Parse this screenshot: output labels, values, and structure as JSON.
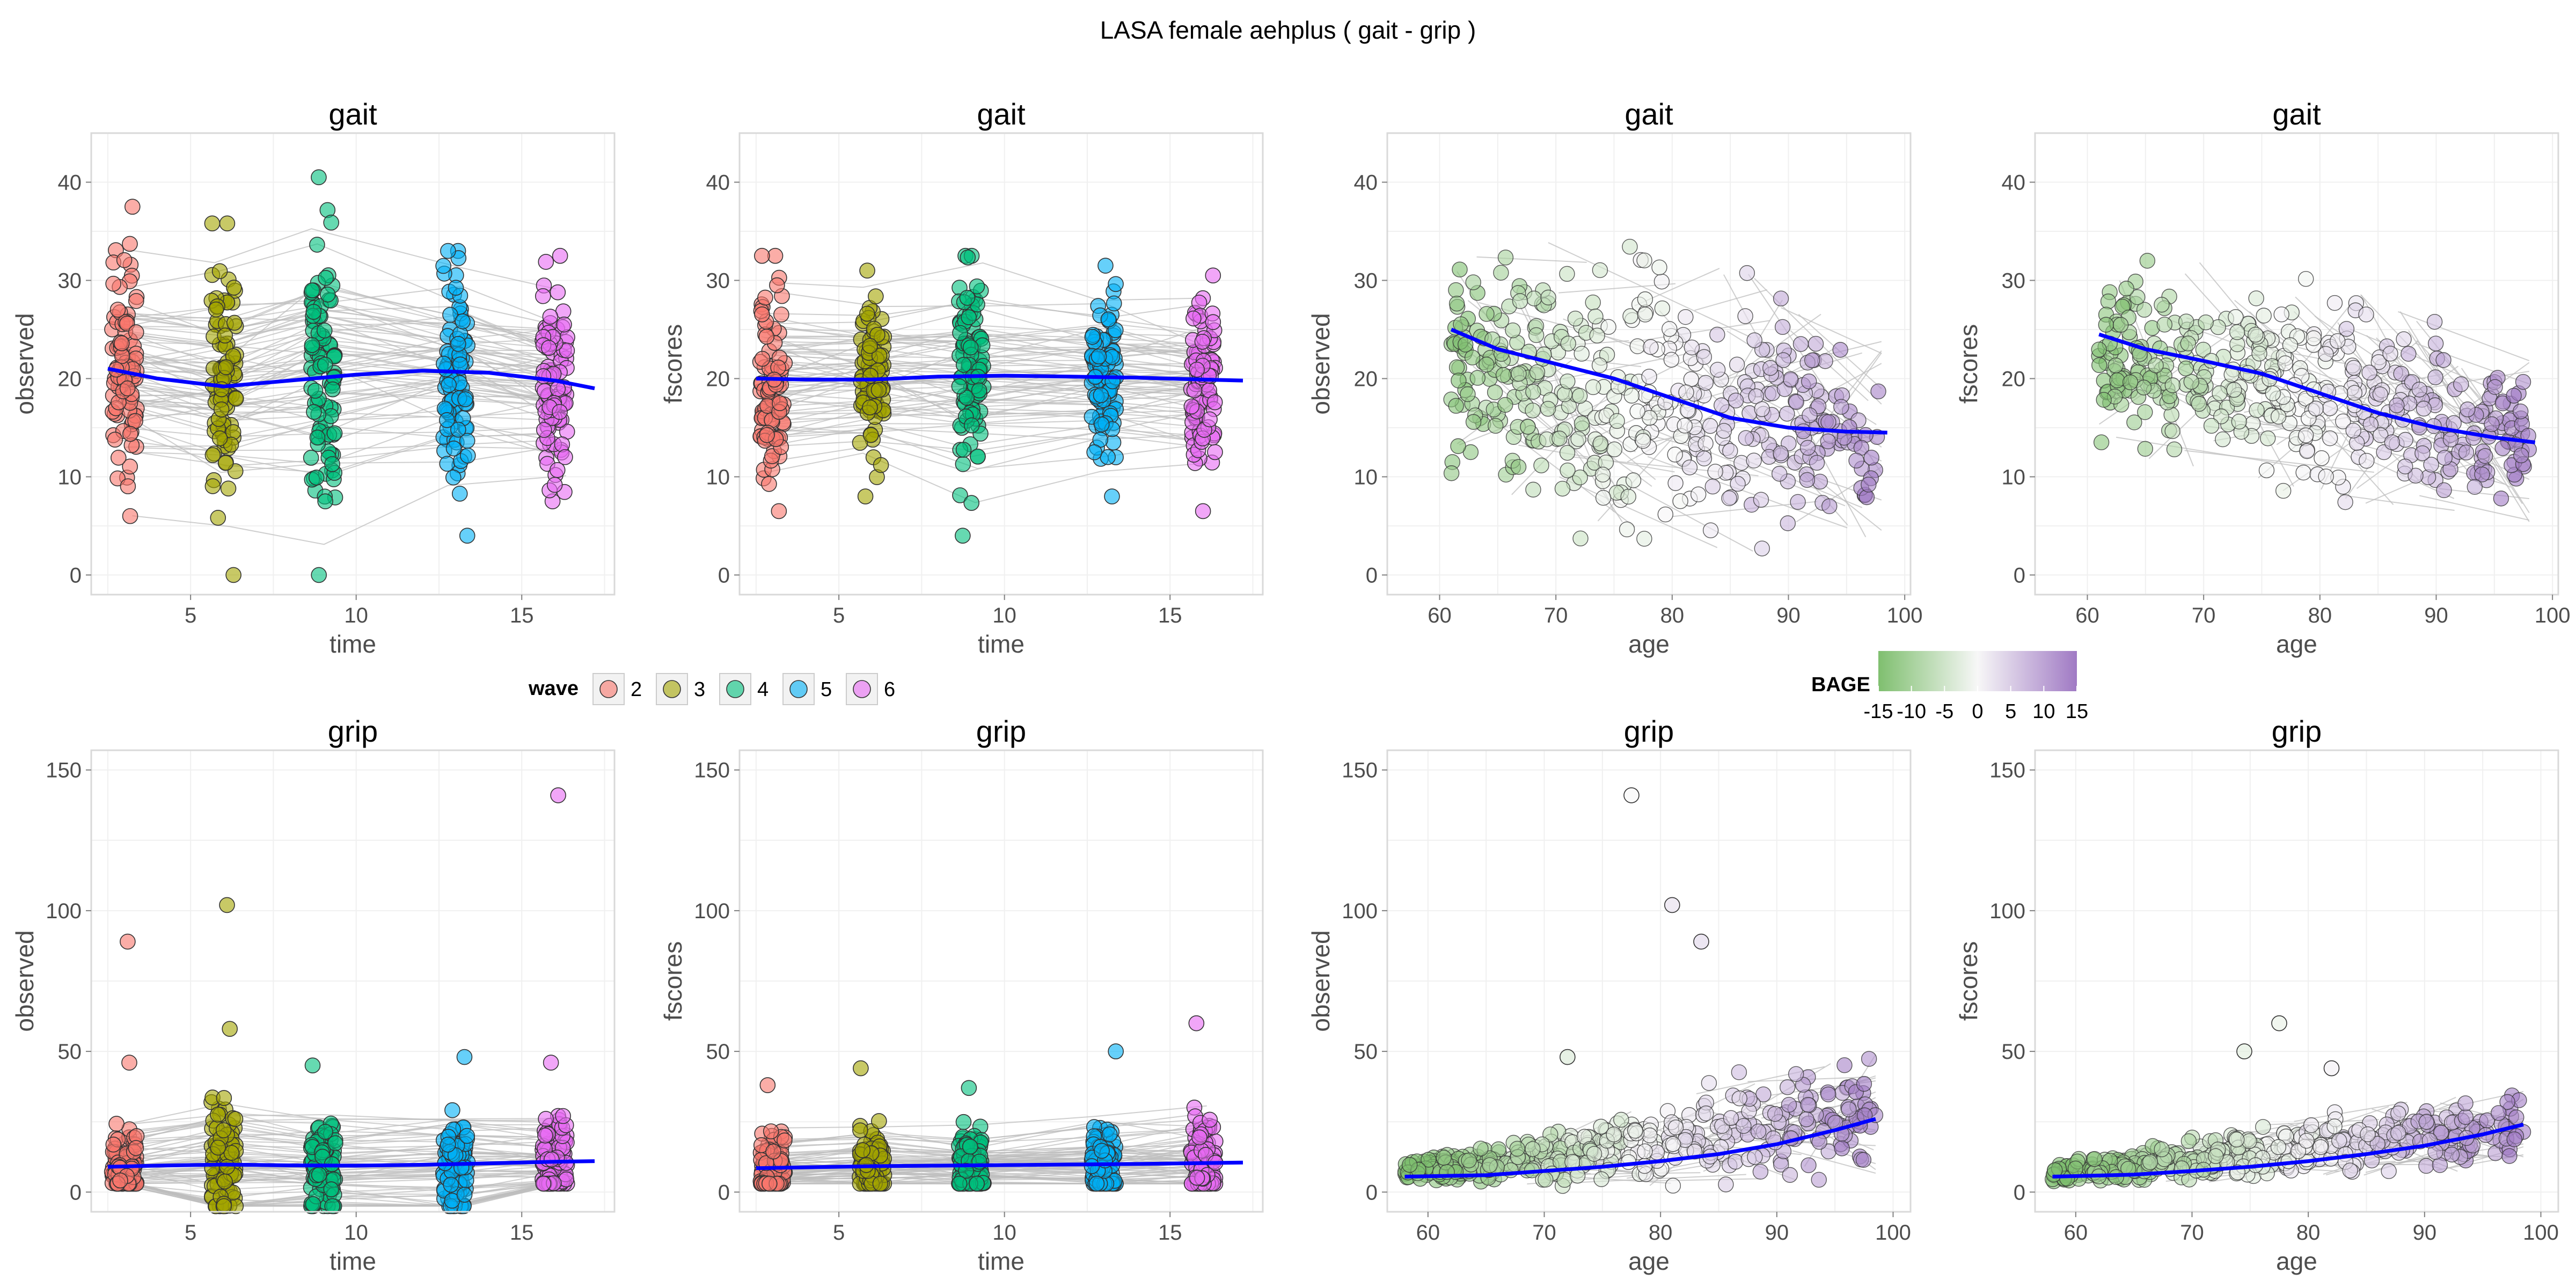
{
  "figure": {
    "title": "LASA  female  aehplus ( gait - grip )",
    "background": "#ffffff",
    "panel_background": "#ffffff",
    "grid_color": "#f0f0f0",
    "panel_border": "#d9d9d9",
    "smooth_color": "#0000ff",
    "trajectory_color": "#bdbdbd"
  },
  "legends": {
    "wave": {
      "title": "wave",
      "entries": [
        {
          "label": "2",
          "color": "#f8766d"
        },
        {
          "label": "3",
          "color": "#a3a500"
        },
        {
          "label": "4",
          "color": "#00bf7d"
        },
        {
          "label": "5",
          "color": "#00b0f6"
        },
        {
          "label": "6",
          "color": "#e76bf3"
        }
      ]
    },
    "bage": {
      "title": "BAGE",
      "low_color": "#7fbf6f",
      "mid_color": "#f7f7f7",
      "high_color": "#a07ac4",
      "labels": [
        "-15",
        "-10",
        "-5",
        "0",
        "5",
        "10",
        "15"
      ],
      "range": [
        -15,
        15
      ]
    }
  },
  "chart_data": [
    {
      "type": "scatter",
      "title": "gait",
      "xlabel": "time",
      "ylabel": "observed",
      "xlim": [
        2,
        17.8
      ],
      "ylim": [
        -2,
        45
      ],
      "xticks": [
        5,
        10,
        15
      ],
      "yticks": [
        0,
        10,
        20,
        30,
        40
      ],
      "color_by": "wave",
      "series": [
        {
          "name": "2",
          "x": 3,
          "range": [
            6,
            37.5
          ],
          "center": 20
        },
        {
          "name": "3",
          "x": 6,
          "range": [
            0,
            35.8
          ],
          "center": 19
        },
        {
          "name": "4",
          "x": 9,
          "range": [
            0,
            40.5
          ],
          "center": 20.5
        },
        {
          "name": "5",
          "x": 13,
          "range": [
            4,
            33
          ],
          "center": 20.5
        },
        {
          "name": "6",
          "x": 16,
          "range": [
            7.5,
            32.5
          ],
          "center": 19.5
        }
      ],
      "smooth": {
        "x": [
          2.5,
          4,
          6,
          8,
          10,
          12,
          14,
          16,
          17.2
        ],
        "y": [
          21,
          20,
          19.2,
          19.8,
          20.4,
          20.8,
          20.6,
          19.8,
          19
        ]
      }
    },
    {
      "type": "scatter",
      "title": "gait",
      "xlabel": "time",
      "ylabel": "fscores",
      "xlim": [
        2,
        17.8
      ],
      "ylim": [
        -2,
        45
      ],
      "xticks": [
        5,
        10,
        15
      ],
      "yticks": [
        0,
        10,
        20,
        30,
        40
      ],
      "color_by": "wave",
      "series": [
        {
          "name": "2",
          "x": 3,
          "range": [
            6.5,
            32.5
          ],
          "center": 20
        },
        {
          "name": "3",
          "x": 6,
          "range": [
            8,
            31
          ],
          "center": 20
        },
        {
          "name": "4",
          "x": 9,
          "range": [
            4,
            32.5
          ],
          "center": 20
        },
        {
          "name": "5",
          "x": 13,
          "range": [
            8,
            31.5
          ],
          "center": 20
        },
        {
          "name": "6",
          "x": 16,
          "range": [
            6.5,
            30.5
          ],
          "center": 19.5
        }
      ],
      "smooth": {
        "x": [
          2.5,
          4,
          6,
          8,
          10,
          12,
          14,
          16,
          17.2
        ],
        "y": [
          20,
          19.9,
          19.9,
          20.2,
          20.3,
          20.2,
          20.1,
          19.9,
          19.8
        ]
      }
    },
    {
      "type": "scatter",
      "title": "gait",
      "xlabel": "age",
      "ylabel": "observed",
      "xlim": [
        55.5,
        100.5
      ],
      "ylim": [
        -2,
        45
      ],
      "xticks": [
        60,
        70,
        80,
        90,
        100
      ],
      "yticks": [
        0,
        10,
        20,
        30,
        40
      ],
      "color_by": "BAGE",
      "cloud": {
        "x_range": [
          61,
          98
        ],
        "upper": [
          33,
          35,
          33,
          30,
          25
        ],
        "lower": [
          8,
          4,
          2,
          1,
          4
        ]
      },
      "smooth": {
        "x": [
          61,
          65,
          70,
          75,
          80,
          85,
          90,
          95,
          98.5
        ],
        "y": [
          25,
          23,
          21.5,
          20,
          18,
          16,
          15,
          14.6,
          14.5
        ]
      }
    },
    {
      "type": "scatter",
      "title": "gait",
      "xlabel": "age",
      "ylabel": "fscores",
      "xlim": [
        55.5,
        100.5
      ],
      "ylim": [
        -2,
        45
      ],
      "xticks": [
        60,
        70,
        80,
        90,
        100
      ],
      "yticks": [
        0,
        10,
        20,
        30,
        40
      ],
      "color_by": "BAGE",
      "cloud": {
        "x_range": [
          61,
          98
        ],
        "upper": [
          32,
          32,
          30,
          27,
          22
        ],
        "lower": [
          13,
          10,
          8,
          6,
          5
        ]
      },
      "smooth": {
        "x": [
          61,
          65,
          70,
          75,
          80,
          85,
          90,
          95,
          98.5
        ],
        "y": [
          24.5,
          23,
          21.8,
          20.5,
          18.5,
          16.5,
          15,
          14,
          13.5
        ]
      }
    },
    {
      "type": "scatter",
      "title": "grip",
      "xlabel": "time",
      "ylabel": "observed",
      "xlim": [
        2,
        17.8
      ],
      "ylim": [
        -7,
        157
      ],
      "xticks": [
        5,
        10,
        15
      ],
      "yticks": [
        0,
        50,
        100,
        150
      ],
      "color_by": "wave",
      "series": [
        {
          "name": "2",
          "x": 3,
          "range": [
            3,
            46
          ],
          "center": 9
        },
        {
          "name": "3",
          "x": 6,
          "range": [
            -5,
            58
          ],
          "center": 10
        },
        {
          "name": "4",
          "x": 9,
          "range": [
            -5,
            45
          ],
          "center": 9
        },
        {
          "name": "5",
          "x": 13,
          "range": [
            -5,
            48
          ],
          "center": 10
        },
        {
          "name": "6",
          "x": 16,
          "range": [
            3,
            46
          ],
          "center": 11
        }
      ],
      "outliers": [
        {
          "x": 3.1,
          "y": 89,
          "wave": "2"
        },
        {
          "x": 6.1,
          "y": 102,
          "wave": "3"
        },
        {
          "x": 16.1,
          "y": 141,
          "wave": "6"
        }
      ],
      "smooth": {
        "x": [
          2.5,
          4,
          6,
          8,
          10,
          12,
          14,
          16,
          17.2
        ],
        "y": [
          9,
          9.4,
          9.8,
          9.5,
          9.4,
          9.7,
          10.2,
          10.8,
          11
        ]
      }
    },
    {
      "type": "scatter",
      "title": "grip",
      "xlabel": "time",
      "ylabel": "fscores",
      "xlim": [
        2,
        17.8
      ],
      "ylim": [
        -7,
        157
      ],
      "xticks": [
        5,
        10,
        15
      ],
      "yticks": [
        0,
        50,
        100,
        150
      ],
      "color_by": "wave",
      "series": [
        {
          "name": "2",
          "x": 3,
          "range": [
            3,
            38
          ],
          "center": 8
        },
        {
          "name": "3",
          "x": 6,
          "range": [
            3,
            44
          ],
          "center": 9
        },
        {
          "name": "4",
          "x": 9,
          "range": [
            3,
            37
          ],
          "center": 9
        },
        {
          "name": "5",
          "x": 13,
          "range": [
            3,
            50
          ],
          "center": 10
        },
        {
          "name": "6",
          "x": 16,
          "range": [
            3,
            60
          ],
          "center": 10
        }
      ],
      "smooth": {
        "x": [
          2.5,
          4,
          6,
          8,
          10,
          12,
          14,
          16,
          17.2
        ],
        "y": [
          8.5,
          8.8,
          9.2,
          9.4,
          9.6,
          9.8,
          10,
          10.3,
          10.5
        ]
      }
    },
    {
      "type": "scatter",
      "title": "grip",
      "xlabel": "age",
      "ylabel": "observed",
      "xlim": [
        56.5,
        101.5
      ],
      "ylim": [
        -7,
        157
      ],
      "xticks": [
        60,
        70,
        80,
        90,
        100
      ],
      "yticks": [
        0,
        50,
        100,
        150
      ],
      "color_by": "BAGE",
      "cloud": {
        "x_range": [
          58,
          98.5
        ],
        "upper": [
          12,
          20,
          30,
          45,
          50
        ],
        "lower": [
          3,
          2,
          2,
          3,
          5
        ]
      },
      "outliers": [
        {
          "x": 77.5,
          "y": 141,
          "bage": 0
        },
        {
          "x": 81,
          "y": 102,
          "bage": 3
        },
        {
          "x": 83.5,
          "y": 89,
          "bage": 4
        },
        {
          "x": 72,
          "y": 48,
          "bage": -4
        }
      ],
      "smooth": {
        "x": [
          58,
          65,
          70,
          75,
          80,
          85,
          90,
          95,
          98.5
        ],
        "y": [
          5.5,
          6,
          7.5,
          9,
          11,
          13.5,
          17,
          22,
          26
        ]
      }
    },
    {
      "type": "scatter",
      "title": "grip",
      "xlabel": "age",
      "ylabel": "fscores",
      "xlim": [
        56.5,
        101.5
      ],
      "ylim": [
        -7,
        157
      ],
      "xticks": [
        60,
        70,
        80,
        90,
        100
      ],
      "yticks": [
        0,
        50,
        100,
        150
      ],
      "color_by": "BAGE",
      "cloud": {
        "x_range": [
          58,
          98.5
        ],
        "upper": [
          10,
          18,
          26,
          32,
          36
        ],
        "lower": [
          3,
          3,
          4,
          6,
          8
        ]
      },
      "outliers": [
        {
          "x": 77.5,
          "y": 60,
          "bage": -2
        },
        {
          "x": 74.5,
          "y": 50,
          "bage": -3
        },
        {
          "x": 82,
          "y": 44,
          "bage": 1
        }
      ],
      "smooth": {
        "x": [
          58,
          65,
          70,
          75,
          80,
          85,
          90,
          95,
          98.5
        ],
        "y": [
          5.5,
          6.2,
          7.5,
          9,
          11,
          13.5,
          16.5,
          20.5,
          24
        ]
      }
    }
  ]
}
